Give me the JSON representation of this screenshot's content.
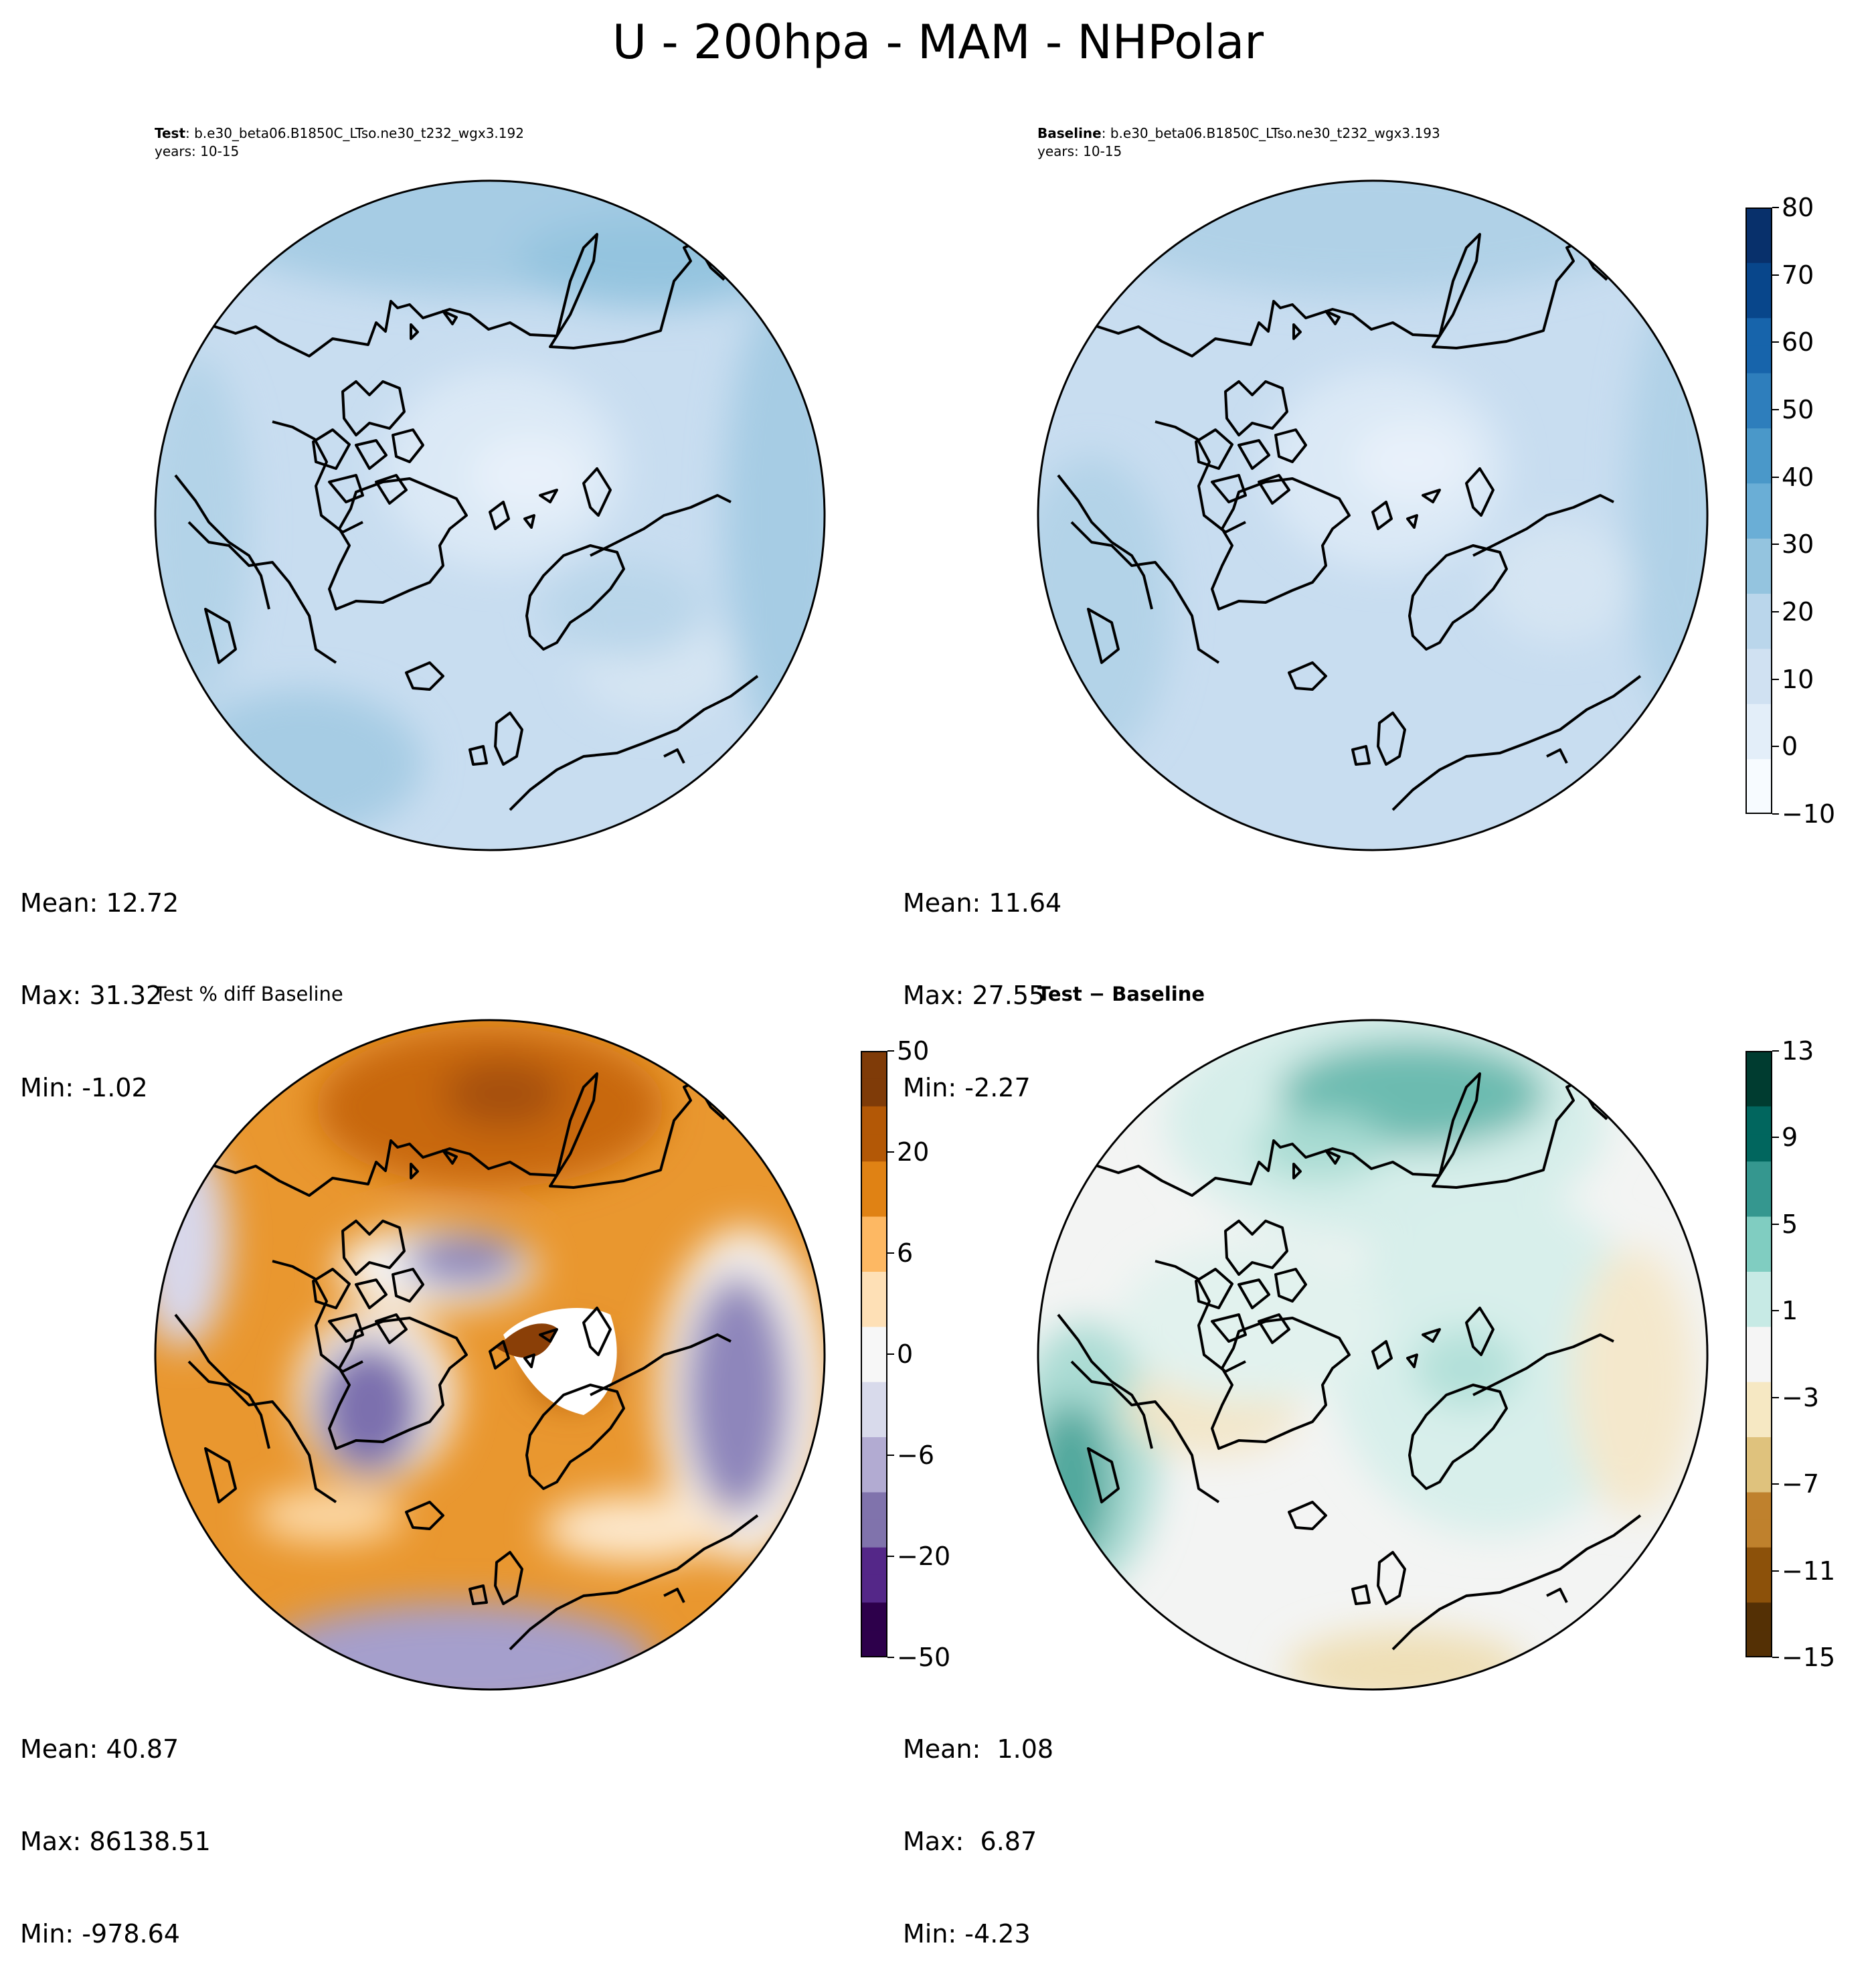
{
  "title": "U - 200hpa - MAM - NHPolar",
  "panels": {
    "test": {
      "label_bold": "Test",
      "case_name": ": b.e30_beta06.B1850C_LTso.ne30_t232_wgx3.192",
      "years": "years: 10-15",
      "stats": {
        "mean": "Mean: 12.72",
        "max": "Max: 31.32",
        "min": "Min: -1.02"
      }
    },
    "baseline": {
      "label_bold": "Baseline",
      "case_name": ": b.e30_beta06.B1850C_LTso.ne30_t232_wgx3.193",
      "years": "years: 10-15",
      "stats": {
        "mean": "Mean: 11.64",
        "max": "Max: 27.55",
        "min": "Min: -2.27"
      }
    },
    "pct_diff": {
      "title": "Test % diff Baseline",
      "stats": {
        "mean": "Mean: 40.87",
        "max": "Max: 86138.51",
        "min": "Min: -978.64"
      }
    },
    "diff": {
      "title": "Test − Baseline",
      "stats": {
        "mean": "Mean:  1.08",
        "max": "Max:  6.87",
        "min": "Min: -4.23"
      }
    }
  },
  "colorbars": {
    "field": {
      "cmap": "Blues",
      "ticks": [
        "−10",
        "0",
        "10",
        "20",
        "30",
        "40",
        "50",
        "60",
        "70",
        "80"
      ],
      "colors": [
        "#f7fbff",
        "#e3eef9",
        "#d0e1f2",
        "#bad6eb",
        "#94c4df",
        "#6aaed6",
        "#4a98c9",
        "#2e7ebc",
        "#1764ab",
        "#08468b",
        "#08306b"
      ]
    },
    "pct": {
      "cmap": "PuOr_r",
      "ticks": [
        "−50",
        "−20",
        "−6",
        "0",
        "6",
        "20",
        "50"
      ],
      "colors": [
        "#2d004b",
        "#542788",
        "#8073ac",
        "#b2abd2",
        "#d8daeb",
        "#f7f7f7",
        "#fee0b6",
        "#fdb863",
        "#e08214",
        "#b35806",
        "#7f3b08"
      ]
    },
    "diff": {
      "cmap": "BrBG",
      "ticks": [
        "−15",
        "−11",
        "−7",
        "−3",
        "1",
        "5",
        "9",
        "13"
      ],
      "colors": [
        "#543005",
        "#8c510a",
        "#bf812d",
        "#dfc27d",
        "#f6e8c3",
        "#f5f5f5",
        "#c7eae5",
        "#80cdc1",
        "#35978f",
        "#01665e",
        "#003c30"
      ]
    }
  }
}
